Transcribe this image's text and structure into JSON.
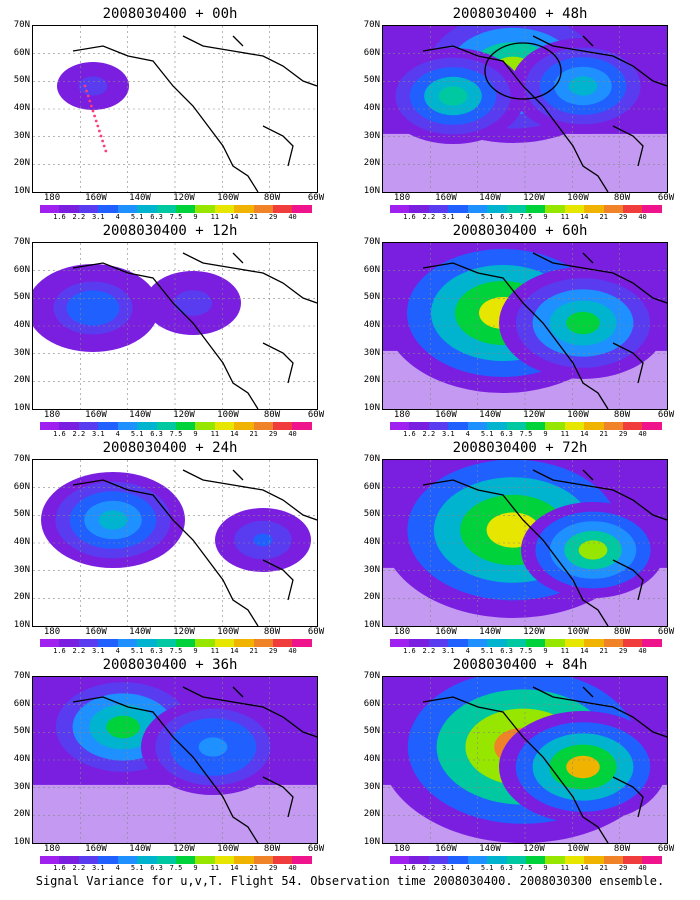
{
  "panels": [
    {
      "title": "2008030400 + 00h",
      "intensity": 0.15
    },
    {
      "title": "2008030400 + 48h",
      "intensity": 0.75
    },
    {
      "title": "2008030400 + 12h",
      "intensity": 0.3
    },
    {
      "title": "2008030400 + 60h",
      "intensity": 0.85
    },
    {
      "title": "2008030400 + 24h",
      "intensity": 0.45
    },
    {
      "title": "2008030400 + 72h",
      "intensity": 0.9
    },
    {
      "title": "2008030400 + 36h",
      "intensity": 0.6
    },
    {
      "title": "2008030400 + 84h",
      "intensity": 0.95
    }
  ],
  "lat_labels": [
    "70N",
    "60N",
    "50N",
    "40N",
    "30N",
    "20N",
    "10N"
  ],
  "lon_labels": [
    "180",
    "160W",
    "140W",
    "120W",
    "100W",
    "80W",
    "60W"
  ],
  "colorbar": {
    "labels": [
      "1.6",
      "2.2",
      "3.1",
      "4",
      "5.1",
      "6.3",
      "7.5",
      "9",
      "11",
      "14",
      "21",
      "29",
      "40"
    ],
    "colors": [
      "#a020f0",
      "#7a1ee0",
      "#5a3cf0",
      "#2060ff",
      "#1e90ff",
      "#00b4d0",
      "#00c8a0",
      "#00d23c",
      "#96e600",
      "#e6e600",
      "#f0b400",
      "#f08228",
      "#f03c3c",
      "#f0148c"
    ]
  },
  "caption": "Signal Variance for u,v,T. Flight 54. Observation time 2008030400. 2008030300 ensemble."
}
